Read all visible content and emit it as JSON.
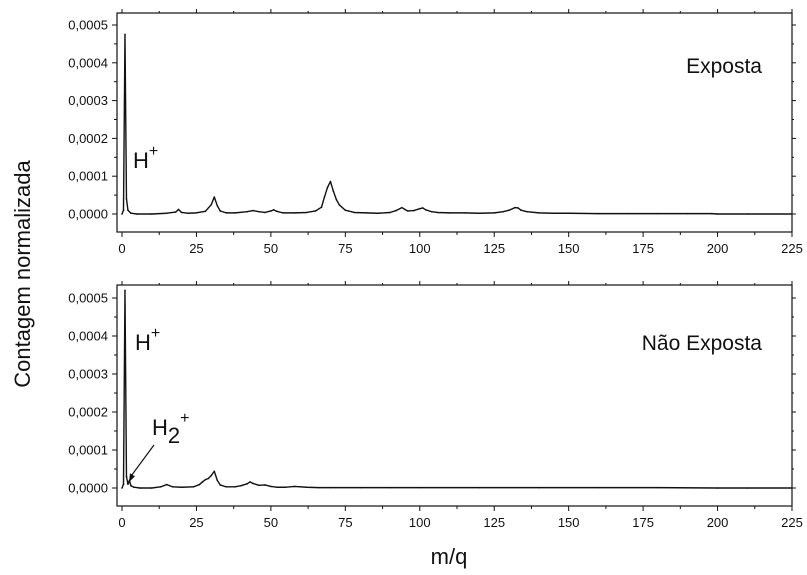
{
  "chart_data": [
    {
      "type": "line",
      "panel_label": "Exposta",
      "xlim": [
        0,
        225
      ],
      "ylim": [
        -3e-05,
        0.00052
      ],
      "x_ticks": [
        "0",
        "25",
        "50",
        "75",
        "100",
        "125",
        "150",
        "175",
        "200",
        "225"
      ],
      "y_ticks": [
        "0,0000",
        "0,0001",
        "0,0002",
        "0,0003",
        "0,0004",
        "0,0005"
      ],
      "annotations": [
        {
          "base": "H",
          "sub": "",
          "sup": "+",
          "x": 1,
          "y": 0.00047
        }
      ],
      "series": [
        {
          "x": [
            0,
            0.5,
            1,
            1.5,
            2,
            3,
            5,
            10,
            15,
            18,
            19,
            20,
            22,
            25,
            28,
            30,
            31,
            32,
            33,
            35,
            38,
            42,
            44,
            46,
            48,
            50,
            51,
            52,
            54,
            58,
            62,
            65,
            67,
            68,
            69,
            70,
            71,
            72,
            73,
            75,
            78,
            82,
            86,
            90,
            92,
            94,
            95,
            96,
            98,
            100,
            101,
            102,
            104,
            106,
            110,
            115,
            120,
            125,
            128,
            130,
            132,
            133,
            134,
            136,
            140,
            145,
            150,
            160,
            170,
            180,
            190,
            198,
            200,
            210,
            225
          ],
          "y": [
            0,
            1e-05,
            0.000475,
            4e-05,
            1e-05,
            2e-06,
            0,
            0,
            2e-06,
            5e-06,
            1.2e-05,
            4e-06,
            2e-06,
            3e-06,
            7e-06,
            2.5e-05,
            4.5e-05,
            2.2e-05,
            8e-06,
            3e-06,
            3e-06,
            6e-06,
            9e-06,
            6e-06,
            4e-06,
            8e-06,
            1.1e-05,
            7e-06,
            3e-06,
            3e-06,
            4e-06,
            8e-06,
            1.8e-05,
            4.5e-05,
            7e-05,
            8.6e-05,
            6e-05,
            3.8e-05,
            2.4e-05,
            1e-05,
            4e-06,
            3e-06,
            2e-06,
            4e-06,
            9e-06,
            1.7e-05,
            1.2e-05,
            8e-06,
            9e-06,
            1.4e-05,
            1.6e-05,
            1.1e-05,
            6e-06,
            4e-06,
            3e-06,
            3e-06,
            2e-06,
            3e-06,
            6e-06,
            1e-05,
            1.7e-05,
            1.6e-05,
            1e-05,
            6e-06,
            3e-06,
            2e-06,
            2e-06,
            1e-06,
            1e-06,
            1e-06,
            1e-06,
            1e-06,
            0,
            0,
            0
          ]
        }
      ]
    },
    {
      "type": "line",
      "panel_label": "Não Exposta",
      "xlim": [
        0,
        225
      ],
      "ylim": [
        -3e-05,
        0.00052
      ],
      "x_ticks": [
        "0",
        "25",
        "50",
        "75",
        "100",
        "125",
        "150",
        "175",
        "200",
        "225"
      ],
      "y_ticks": [
        "0,0000",
        "0,0001",
        "0,0002",
        "0,0003",
        "0,0004",
        "0,0005"
      ],
      "annotations": [
        {
          "base": "H",
          "sub": "",
          "sup": "+",
          "x": 1,
          "y": 0.00052
        },
        {
          "base": "H",
          "sub": "2",
          "sup": "+",
          "x": 2,
          "y": 1e-05
        }
      ],
      "series": [
        {
          "x": [
            0,
            0.5,
            1,
            1.5,
            2,
            2.5,
            3,
            4,
            6,
            10,
            13,
            15,
            17,
            20,
            24,
            26,
            27,
            28,
            29,
            30,
            31,
            32,
            33,
            35,
            38,
            40,
            42,
            43,
            44,
            46,
            48,
            50,
            52,
            55,
            58,
            62,
            66,
            70,
            80,
            90,
            100,
            120,
            140,
            160,
            180,
            200,
            210,
            225
          ],
          "y": [
            0,
            1e-05,
            0.00052,
            3e-05,
            1e-05,
            2e-05,
            6e-06,
            2e-06,
            0,
            0,
            3e-06,
            9e-06,
            3e-06,
            2e-06,
            3e-06,
            9e-06,
            1.6e-05,
            2.2e-05,
            2.5e-05,
            3.3e-05,
            4.4e-05,
            2e-05,
            8e-06,
            3e-06,
            3e-06,
            6e-06,
            1.1e-05,
            1.6e-05,
            1.2e-05,
            7e-06,
            8e-06,
            4e-06,
            2e-06,
            2e-06,
            4e-06,
            2e-06,
            1e-06,
            1e-06,
            1e-06,
            1e-06,
            1e-06,
            1e-06,
            1e-06,
            1e-06,
            1e-06,
            0,
            0,
            0
          ]
        }
      ]
    }
  ],
  "shared": {
    "xlabel": "m/q",
    "ylabel": "Contagem normalizada"
  }
}
